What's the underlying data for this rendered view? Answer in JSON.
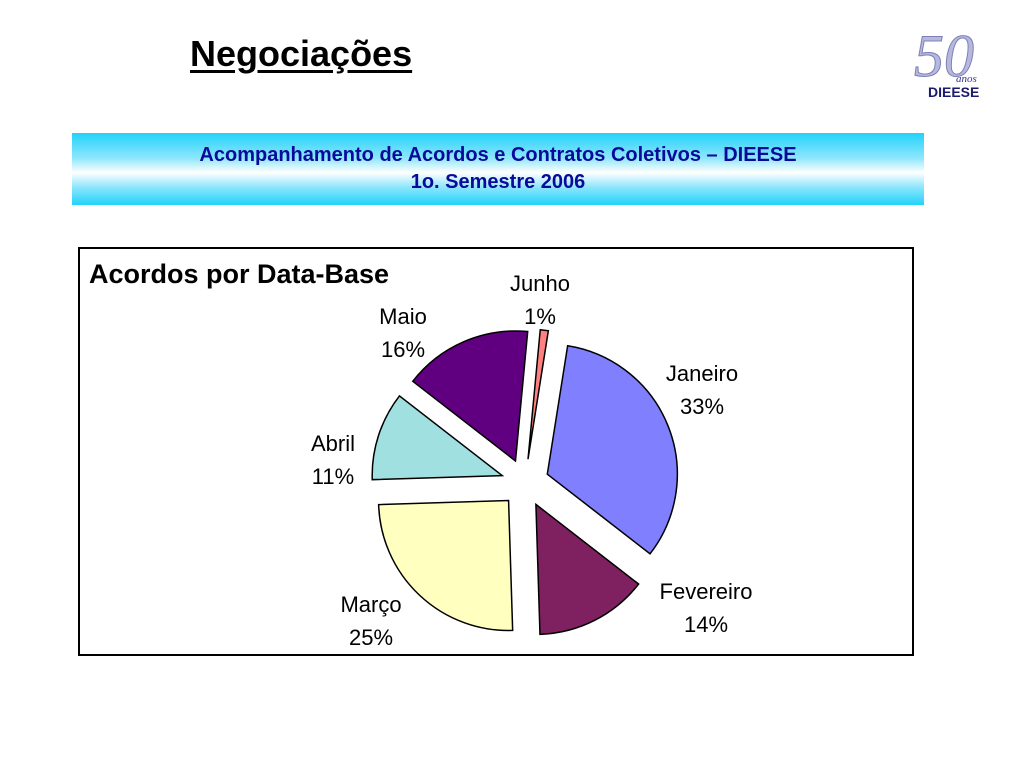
{
  "page": {
    "title": "Negociações"
  },
  "logo": {
    "number": "50",
    "word": "anos",
    "brand": "DIEESE"
  },
  "banner": {
    "line1": "Acompanhamento de Acordos e Contratos Coletivos – DIEESE",
    "line2": "1o. Semestre 2006"
  },
  "chart_data": {
    "type": "pie",
    "title": "Acordos por Data-Base",
    "categories": [
      "Janeiro",
      "Fevereiro",
      "Março",
      "Abril",
      "Maio",
      "Junho"
    ],
    "values": [
      33,
      14,
      25,
      11,
      16,
      1
    ],
    "labels": [
      "33%",
      "14%",
      "25%",
      "11%",
      "16%",
      "1%"
    ],
    "colors": [
      "#8080ff",
      "#7f2060",
      "#ffffc0",
      "#a0e0e0",
      "#600080",
      "#ff8080"
    ],
    "exploded": true,
    "legend": "none"
  }
}
